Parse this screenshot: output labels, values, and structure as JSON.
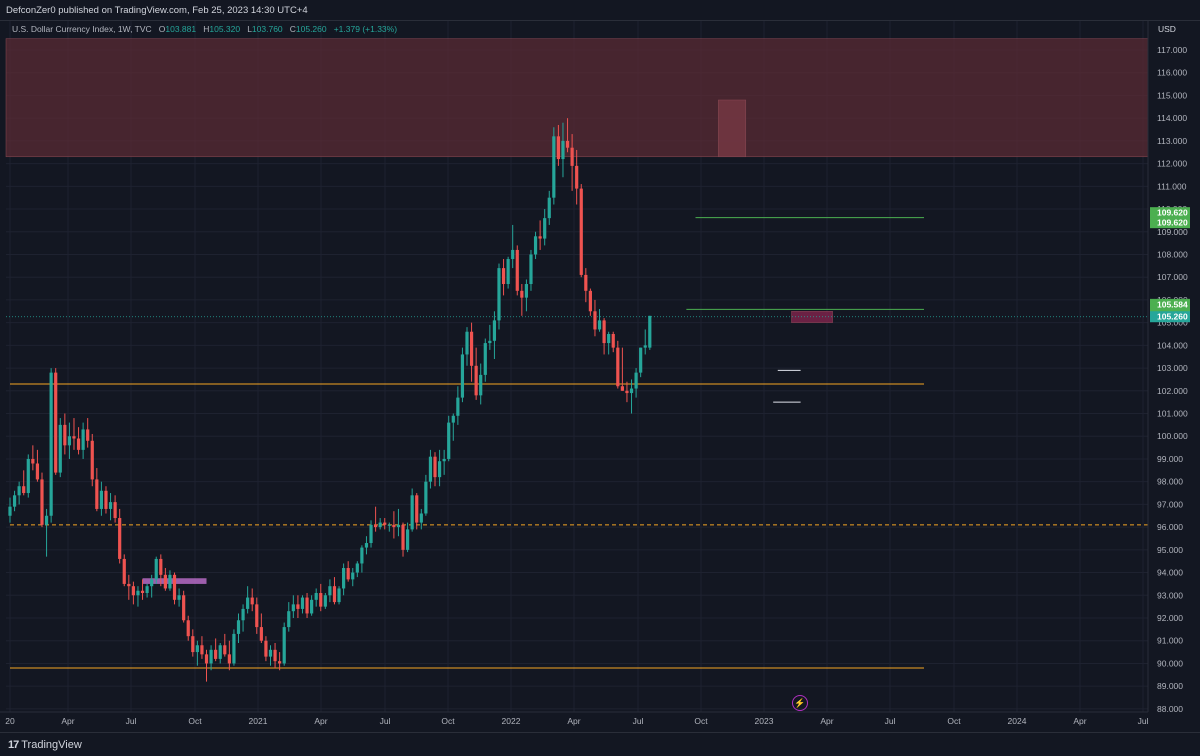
{
  "header": {
    "published_text": "DefconZer0 published on TradingView.com, Feb 25, 2023 14:30 UTC+4"
  },
  "legend": {
    "symbol": "U.S. Dollar Currency Index, 1W, TVC",
    "open_label": "O",
    "open": "103.881",
    "high_label": "H",
    "high": "105.320",
    "low_label": "L",
    "low": "103.760",
    "close_label": "C",
    "close": "105.260",
    "change": "+1.379 (+1.33%)",
    "currency": "USD"
  },
  "footer": {
    "brand": "TradingView"
  },
  "colors": {
    "up": "#26a69a",
    "down": "#ef5350",
    "background": "#131722",
    "green_level": "#4caf50",
    "orange_level": "#f5a623",
    "zone": "#5a2b34",
    "purple_zone": "#6a1f3d"
  },
  "chart_data": {
    "type": "candlestick",
    "y_axis_ticks": [
      "117.000",
      "116.000",
      "115.000",
      "114.000",
      "113.000",
      "112.000",
      "111.000",
      "110.000",
      "109.000",
      "108.000",
      "107.000",
      "106.000",
      "105.000",
      "104.000",
      "103.000",
      "102.000",
      "101.000",
      "100.000",
      "99.000",
      "98.000",
      "97.000",
      "96.000",
      "95.000",
      "94.000",
      "93.000",
      "92.000",
      "91.000",
      "90.000",
      "89.000",
      "88.000"
    ],
    "ylim": [
      87.5,
      117.5
    ],
    "x_axis_ticks": [
      "20",
      "Apr",
      "Jul",
      "Oct",
      "2021",
      "Apr",
      "Jul",
      "Oct",
      "2022",
      "Apr",
      "Jul",
      "Oct",
      "2023",
      "Apr",
      "Jul",
      "Oct",
      "2024",
      "Apr",
      "Jul"
    ],
    "price_labels": [
      {
        "text": "109.620",
        "value": 109.62,
        "color": "#4caf50"
      },
      {
        "text": "109.620",
        "value": 109.62,
        "color": "#4caf50"
      },
      {
        "text": "105.584",
        "value": 105.584,
        "color": "#4caf50"
      },
      {
        "text": "105.584",
        "value": 105.584,
        "color": "#4caf50"
      },
      {
        "text": "105.260",
        "value": 105.26,
        "color": "#26a69a"
      }
    ],
    "levels": [
      {
        "value": 109.62,
        "color": "#4caf50",
        "from_week": 150,
        "to_week": 200
      },
      {
        "value": 105.584,
        "color": "#4caf50",
        "from_week": 148,
        "to_week": 200
      },
      {
        "value": 102.3,
        "color": "#f5a623",
        "from_week": 0,
        "to_week": 200
      },
      {
        "value": 96.1,
        "color": "#f5a623",
        "dashed": true,
        "from_week": 0,
        "to_week": 265
      },
      {
        "value": 89.8,
        "color": "#f5a623",
        "from_week": 0,
        "to_week": 200
      }
    ],
    "zones": [
      {
        "from_value": 112.3,
        "to_value": 117.5,
        "color": "#5a2b34"
      },
      {
        "from_value": 112.3,
        "to_value": 114.8,
        "color": "#7a3a45",
        "from_week": 155,
        "to_week": 161
      },
      {
        "from_value": 105.0,
        "to_value": 105.5,
        "color": "#8a2550",
        "from_week": 171,
        "to_week": 180
      }
    ],
    "candles_weekly_ohlc": [
      [
        96.5,
        97.3,
        96.2,
        96.9
      ],
      [
        96.9,
        97.6,
        96.7,
        97.4
      ],
      [
        97.4,
        98.0,
        97.0,
        97.8
      ],
      [
        97.8,
        98.5,
        97.4,
        97.5
      ],
      [
        97.5,
        99.2,
        97.3,
        99.0
      ],
      [
        99.0,
        99.6,
        98.5,
        98.8
      ],
      [
        98.8,
        99.4,
        98.0,
        98.1
      ],
      [
        98.1,
        98.4,
        96.0,
        96.1
      ],
      [
        96.1,
        96.8,
        94.7,
        96.5
      ],
      [
        96.5,
        103.0,
        96.2,
        102.8
      ],
      [
        102.8,
        103.0,
        98.3,
        98.4
      ],
      [
        98.4,
        100.8,
        98.2,
        100.5
      ],
      [
        100.5,
        101.0,
        99.2,
        99.6
      ],
      [
        99.6,
        100.6,
        99.0,
        100.0
      ],
      [
        100.0,
        100.8,
        99.4,
        99.9
      ],
      [
        99.9,
        100.4,
        99.2,
        99.4
      ],
      [
        99.4,
        100.6,
        99.0,
        100.3
      ],
      [
        100.3,
        100.8,
        99.5,
        99.8
      ],
      [
        99.8,
        100.1,
        97.8,
        98.1
      ],
      [
        98.1,
        98.6,
        96.7,
        96.8
      ],
      [
        96.8,
        98.0,
        96.5,
        97.6
      ],
      [
        97.6,
        97.8,
        96.6,
        96.8
      ],
      [
        96.8,
        97.5,
        96.3,
        97.1
      ],
      [
        97.1,
        97.4,
        96.2,
        96.4
      ],
      [
        96.4,
        96.8,
        94.4,
        94.6
      ],
      [
        94.6,
        94.8,
        93.4,
        93.5
      ],
      [
        93.5,
        93.9,
        92.8,
        93.4
      ],
      [
        93.4,
        93.6,
        92.6,
        93.0
      ],
      [
        93.0,
        93.4,
        92.5,
        93.2
      ],
      [
        93.2,
        93.7,
        92.8,
        93.1
      ],
      [
        93.1,
        93.5,
        92.9,
        93.4
      ],
      [
        93.4,
        93.9,
        92.9,
        93.7
      ],
      [
        93.7,
        94.7,
        93.5,
        94.6
      ],
      [
        94.6,
        94.8,
        93.4,
        93.9
      ],
      [
        93.9,
        94.2,
        93.2,
        93.3
      ],
      [
        93.3,
        94.1,
        93.2,
        93.9
      ],
      [
        93.9,
        94.0,
        92.6,
        92.8
      ],
      [
        92.8,
        93.3,
        92.5,
        93.0
      ],
      [
        93.0,
        93.2,
        91.8,
        91.9
      ],
      [
        91.9,
        92.1,
        91.0,
        91.2
      ],
      [
        91.2,
        91.5,
        90.3,
        90.5
      ],
      [
        90.5,
        91.0,
        89.9,
        90.8
      ],
      [
        90.8,
        91.2,
        90.2,
        90.4
      ],
      [
        90.4,
        90.6,
        89.2,
        90.0
      ],
      [
        90.0,
        90.8,
        89.7,
        90.6
      ],
      [
        90.6,
        91.1,
        90.1,
        90.2
      ],
      [
        90.2,
        90.9,
        90.0,
        90.8
      ],
      [
        90.8,
        91.3,
        90.3,
        90.4
      ],
      [
        90.4,
        91.0,
        89.7,
        90.0
      ],
      [
        90.0,
        91.5,
        89.9,
        91.3
      ],
      [
        91.3,
        92.2,
        90.9,
        91.9
      ],
      [
        91.9,
        92.6,
        91.4,
        92.4
      ],
      [
        92.4,
        93.4,
        92.2,
        92.9
      ],
      [
        92.9,
        93.3,
        92.3,
        92.6
      ],
      [
        92.6,
        92.9,
        91.3,
        91.6
      ],
      [
        91.6,
        92.2,
        90.9,
        91.0
      ],
      [
        91.0,
        91.2,
        90.1,
        90.3
      ],
      [
        90.3,
        90.8,
        89.9,
        90.6
      ],
      [
        90.6,
        90.9,
        89.8,
        90.1
      ],
      [
        90.1,
        90.5,
        89.7,
        90.0
      ],
      [
        90.0,
        91.8,
        89.9,
        91.6
      ],
      [
        91.6,
        92.7,
        91.4,
        92.3
      ],
      [
        92.3,
        93.0,
        92.0,
        92.6
      ],
      [
        92.6,
        93.0,
        92.0,
        92.4
      ],
      [
        92.4,
        93.0,
        92.2,
        92.9
      ],
      [
        92.9,
        93.1,
        92.0,
        92.2
      ],
      [
        92.2,
        93.0,
        92.1,
        92.8
      ],
      [
        92.8,
        93.3,
        92.5,
        93.1
      ],
      [
        93.1,
        93.5,
        92.3,
        92.5
      ],
      [
        92.5,
        93.1,
        92.4,
        93.0
      ],
      [
        93.0,
        93.7,
        92.7,
        93.4
      ],
      [
        93.4,
        93.8,
        92.6,
        92.7
      ],
      [
        92.7,
        93.4,
        92.6,
        93.3
      ],
      [
        93.3,
        94.4,
        93.0,
        94.2
      ],
      [
        94.2,
        94.5,
        93.6,
        93.7
      ],
      [
        93.7,
        94.2,
        93.4,
        94.0
      ],
      [
        94.0,
        94.5,
        93.8,
        94.4
      ],
      [
        94.4,
        95.2,
        94.0,
        95.1
      ],
      [
        95.1,
        95.6,
        94.8,
        95.3
      ],
      [
        95.3,
        96.3,
        95.1,
        96.1
      ],
      [
        96.1,
        96.9,
        95.8,
        96.0
      ],
      [
        96.0,
        96.4,
        95.9,
        96.2
      ],
      [
        96.2,
        96.4,
        95.9,
        96.1
      ],
      [
        96.1,
        96.2,
        95.8,
        96.1
      ],
      [
        96.1,
        96.7,
        95.5,
        96.0
      ],
      [
        96.0,
        96.8,
        95.6,
        96.1
      ],
      [
        96.1,
        96.2,
        94.7,
        95.0
      ],
      [
        95.0,
        96.2,
        94.9,
        95.9
      ],
      [
        95.9,
        97.7,
        95.8,
        97.4
      ],
      [
        97.4,
        97.5,
        95.9,
        96.2
      ],
      [
        96.2,
        96.8,
        95.9,
        96.6
      ],
      [
        96.6,
        98.3,
        96.5,
        98.0
      ],
      [
        98.0,
        99.4,
        97.7,
        99.1
      ],
      [
        99.1,
        99.3,
        97.8,
        98.2
      ],
      [
        98.2,
        99.4,
        97.8,
        98.9
      ],
      [
        98.9,
        99.4,
        98.3,
        99.0
      ],
      [
        99.0,
        100.9,
        98.9,
        100.6
      ],
      [
        100.6,
        101.0,
        99.8,
        100.9
      ],
      [
        100.9,
        102.2,
        100.5,
        101.7
      ],
      [
        101.7,
        103.9,
        101.5,
        103.6
      ],
      [
        103.6,
        104.8,
        103.1,
        104.6
      ],
      [
        104.6,
        105.0,
        102.4,
        103.1
      ],
      [
        103.1,
        103.9,
        101.6,
        101.8
      ],
      [
        101.8,
        103.2,
        101.4,
        102.7
      ],
      [
        102.7,
        104.3,
        102.4,
        104.1
      ],
      [
        104.1,
        104.9,
        103.8,
        104.2
      ],
      [
        104.2,
        105.5,
        103.4,
        105.1
      ],
      [
        105.1,
        107.6,
        104.7,
        107.4
      ],
      [
        107.4,
        107.8,
        106.2,
        106.7
      ],
      [
        106.7,
        107.9,
        106.5,
        107.8
      ],
      [
        107.8,
        109.3,
        107.4,
        108.2
      ],
      [
        108.2,
        108.4,
        106.2,
        106.4
      ],
      [
        106.4,
        106.7,
        105.3,
        106.1
      ],
      [
        106.1,
        106.9,
        105.5,
        106.7
      ],
      [
        106.7,
        108.2,
        106.4,
        108.0
      ],
      [
        108.0,
        109.0,
        107.8,
        108.8
      ],
      [
        108.8,
        109.5,
        108.2,
        108.7
      ],
      [
        108.7,
        110.0,
        108.4,
        109.6
      ],
      [
        109.6,
        110.8,
        109.3,
        110.5
      ],
      [
        110.5,
        113.6,
        110.2,
        113.2
      ],
      [
        113.2,
        113.7,
        111.9,
        112.2
      ],
      [
        112.2,
        113.8,
        111.4,
        113.0
      ],
      [
        113.0,
        114.0,
        112.5,
        112.7
      ],
      [
        112.7,
        113.3,
        110.8,
        111.9
      ],
      [
        111.9,
        112.6,
        110.2,
        110.9
      ],
      [
        110.9,
        111.1,
        107.0,
        107.1
      ],
      [
        107.1,
        107.4,
        105.9,
        106.4
      ],
      [
        106.4,
        106.5,
        105.3,
        105.5
      ],
      [
        105.5,
        106.0,
        104.4,
        104.7
      ],
      [
        104.7,
        105.6,
        104.6,
        105.1
      ],
      [
        105.1,
        105.2,
        103.6,
        104.1
      ],
      [
        104.1,
        104.6,
        103.6,
        104.5
      ],
      [
        104.5,
        104.6,
        103.7,
        103.9
      ],
      [
        103.9,
        104.2,
        102.1,
        102.2
      ],
      [
        102.2,
        103.9,
        102.0,
        102.0
      ],
      [
        102.0,
        102.4,
        101.5,
        101.9
      ],
      [
        101.9,
        102.5,
        101.0,
        102.1
      ],
      [
        102.1,
        103.0,
        101.7,
        102.8
      ],
      [
        102.8,
        103.9,
        102.6,
        103.9
      ],
      [
        103.9,
        104.7,
        103.6,
        104.0
      ],
      [
        103.9,
        105.3,
        103.8,
        105.3
      ]
    ]
  }
}
